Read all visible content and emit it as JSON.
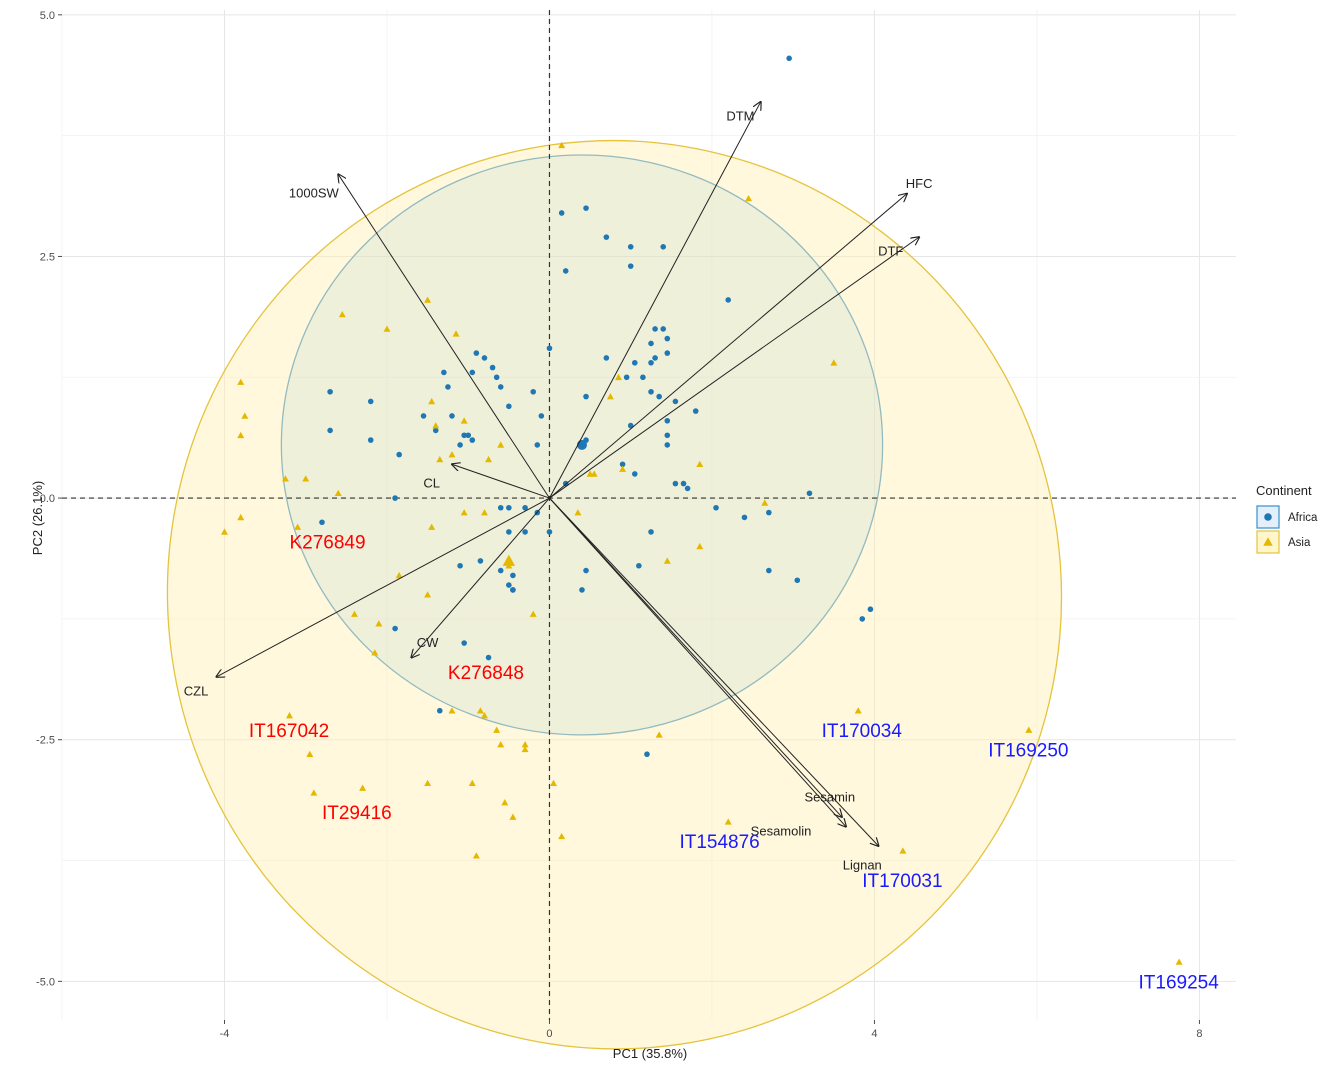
{
  "chart_data": {
    "type": "scatter",
    "subtype": "pca-biplot",
    "xlabel": "PC1 (35.8%)",
    "ylabel": "PC2 (26.1%)",
    "xlim": [
      -6.0,
      8.45
    ],
    "ylim": [
      -5.4,
      5.05
    ],
    "xticks": [
      -4,
      0,
      4,
      8
    ],
    "yticks": [
      -5.0,
      -2.5,
      0.0,
      2.5,
      5.0
    ],
    "xtick_labels": [
      "-4",
      "0",
      "4",
      "8"
    ],
    "ytick_labels": [
      "-5.0",
      "-2.5",
      "0.0",
      "2.5",
      "5.0"
    ],
    "grid": true,
    "reference_lines": {
      "x": 0,
      "y": 0,
      "style": "dashed"
    },
    "legend": {
      "title": "Continent",
      "position": "right",
      "entries": [
        {
          "name": "Africa",
          "marker": "circle",
          "color": "#1f78b4"
        },
        {
          "name": "Asia",
          "marker": "triangle",
          "color": "#e5b800"
        }
      ]
    },
    "ellipses": [
      {
        "group": "Africa",
        "center": [
          0.4,
          0.55
        ],
        "rx": 3.7,
        "ry": 3.0,
        "rotation_deg": 0,
        "fill": "#4aa3df",
        "stroke": "#3a8fc8",
        "fill_opacity": 0.16
      },
      {
        "group": "Asia",
        "center": [
          0.8,
          -1.0
        ],
        "rx": 5.5,
        "ry": 4.7,
        "rotation_deg": -8,
        "fill": "#fff0b3",
        "stroke": "#e5c33c",
        "fill_opacity": 0.45
      }
    ],
    "loadings": [
      {
        "name": "DTM",
        "x": 2.6,
        "y": 4.1,
        "label_x": 2.35,
        "label_y": 3.95
      },
      {
        "name": "HFC",
        "x": 4.4,
        "y": 3.15,
        "label_x": 4.55,
        "label_y": 3.25
      },
      {
        "name": "DTF",
        "x": 4.55,
        "y": 2.7,
        "label_x": 4.2,
        "label_y": 2.55
      },
      {
        "name": "1000SW",
        "x": -2.6,
        "y": 3.35,
        "label_x": -2.9,
        "label_y": 3.15
      },
      {
        "name": "CL",
        "x": -1.2,
        "y": 0.35,
        "label_x": -1.45,
        "label_y": 0.15
      },
      {
        "name": "CW",
        "x": -1.7,
        "y": -1.65,
        "label_x": -1.5,
        "label_y": -1.5
      },
      {
        "name": "CZL",
        "x": -4.1,
        "y": -1.85,
        "label_x": -4.35,
        "label_y": -2.0
      },
      {
        "name": "Sesamin",
        "x": 3.6,
        "y": -3.3,
        "label_x": 3.45,
        "label_y": -3.1
      },
      {
        "name": "Sesamolin",
        "x": 3.65,
        "y": -3.4,
        "label_x": 2.85,
        "label_y": -3.45
      },
      {
        "name": "Lignan",
        "x": 4.05,
        "y": -3.6,
        "label_x": 3.85,
        "label_y": -3.8
      }
    ],
    "series": [
      {
        "name": "Africa",
        "marker": "circle",
        "points": [
          [
            2.95,
            4.55
          ],
          [
            0.15,
            2.95
          ],
          [
            0.45,
            3.0
          ],
          [
            0.2,
            2.35
          ],
          [
            0.7,
            2.7
          ],
          [
            1.0,
            2.6
          ],
          [
            1.4,
            2.6
          ],
          [
            1.0,
            2.4
          ],
          [
            2.2,
            2.05
          ],
          [
            1.3,
            1.75
          ],
          [
            1.4,
            1.75
          ],
          [
            1.45,
            1.65
          ],
          [
            1.25,
            1.6
          ],
          [
            0.0,
            1.55
          ],
          [
            1.45,
            1.5
          ],
          [
            0.7,
            1.45
          ],
          [
            1.05,
            1.4
          ],
          [
            1.25,
            1.4
          ],
          [
            1.3,
            1.45
          ],
          [
            -0.9,
            1.5
          ],
          [
            -0.8,
            1.45
          ],
          [
            -0.7,
            1.35
          ],
          [
            -0.95,
            1.3
          ],
          [
            -0.65,
            1.25
          ],
          [
            -1.3,
            1.3
          ],
          [
            -1.25,
            1.15
          ],
          [
            -0.6,
            1.15
          ],
          [
            -2.7,
            1.1
          ],
          [
            -2.2,
            1.0
          ],
          [
            -0.2,
            1.1
          ],
          [
            0.45,
            1.05
          ],
          [
            0.95,
            1.25
          ],
          [
            1.15,
            1.25
          ],
          [
            1.25,
            1.1
          ],
          [
            1.35,
            1.05
          ],
          [
            1.55,
            1.0
          ],
          [
            -1.55,
            0.85
          ],
          [
            -1.0,
            0.65
          ],
          [
            -1.2,
            0.85
          ],
          [
            -0.5,
            0.95
          ],
          [
            -0.1,
            0.85
          ],
          [
            1.0,
            0.75
          ],
          [
            1.45,
            0.8
          ],
          [
            1.8,
            0.9
          ],
          [
            1.45,
            0.65
          ],
          [
            -2.7,
            0.7
          ],
          [
            -2.2,
            0.6
          ],
          [
            -1.4,
            0.7
          ],
          [
            -1.05,
            0.65
          ],
          [
            -0.95,
            0.6
          ],
          [
            -1.1,
            0.55
          ],
          [
            0.4,
            0.55
          ],
          [
            0.45,
            0.6
          ],
          [
            1.45,
            0.55
          ],
          [
            -1.85,
            0.45
          ],
          [
            -0.15,
            0.55
          ],
          [
            0.2,
            0.15
          ],
          [
            0.9,
            0.35
          ],
          [
            1.55,
            0.15
          ],
          [
            1.65,
            0.15
          ],
          [
            1.7,
            0.1
          ],
          [
            1.05,
            0.25
          ],
          [
            -1.9,
            0.0
          ],
          [
            -2.8,
            -0.25
          ],
          [
            -0.6,
            -0.1
          ],
          [
            -0.5,
            -0.1
          ],
          [
            -0.3,
            -0.1
          ],
          [
            -0.15,
            -0.15
          ],
          [
            2.05,
            -0.1
          ],
          [
            2.7,
            -0.15
          ],
          [
            3.2,
            0.05
          ],
          [
            -0.5,
            -0.35
          ],
          [
            -0.3,
            -0.35
          ],
          [
            0.0,
            -0.35
          ],
          [
            1.25,
            -0.35
          ],
          [
            2.4,
            -0.2
          ],
          [
            -0.85,
            -0.65
          ],
          [
            -1.1,
            -0.7
          ],
          [
            -0.6,
            -0.75
          ],
          [
            -0.45,
            -0.8
          ],
          [
            -0.45,
            -0.95
          ],
          [
            -0.5,
            -0.9
          ],
          [
            0.45,
            -0.75
          ],
          [
            1.1,
            -0.7
          ],
          [
            2.7,
            -0.75
          ],
          [
            3.05,
            -0.85
          ],
          [
            0.4,
            -0.95
          ],
          [
            -0.45,
            -0.95
          ],
          [
            -1.9,
            -1.35
          ],
          [
            -1.05,
            -1.5
          ],
          [
            -0.75,
            -1.65
          ],
          [
            3.95,
            -1.15
          ],
          [
            3.85,
            -1.25
          ],
          [
            -1.35,
            -2.2
          ],
          [
            1.2,
            -2.65
          ]
        ]
      },
      {
        "name": "Asia",
        "marker": "triangle",
        "points": [
          [
            0.15,
            3.65
          ],
          [
            2.45,
            3.1
          ],
          [
            -1.5,
            2.05
          ],
          [
            -2.55,
            1.9
          ],
          [
            -2.0,
            1.75
          ],
          [
            -1.15,
            1.7
          ],
          [
            3.5,
            1.4
          ],
          [
            -3.8,
            1.2
          ],
          [
            -3.75,
            0.85
          ],
          [
            -3.8,
            0.65
          ],
          [
            -1.45,
            1.0
          ],
          [
            0.85,
            1.25
          ],
          [
            0.75,
            1.05
          ],
          [
            -1.4,
            0.75
          ],
          [
            -1.05,
            0.8
          ],
          [
            -0.6,
            0.55
          ],
          [
            -0.75,
            0.4
          ],
          [
            -1.2,
            0.45
          ],
          [
            -1.35,
            0.4
          ],
          [
            0.5,
            0.25
          ],
          [
            0.55,
            0.25
          ],
          [
            0.9,
            0.3
          ],
          [
            1.85,
            0.35
          ],
          [
            -3.25,
            0.2
          ],
          [
            -3.0,
            0.2
          ],
          [
            -2.6,
            0.05
          ],
          [
            -3.8,
            -0.2
          ],
          [
            -4.0,
            -0.35
          ],
          [
            -3.1,
            -0.3
          ],
          [
            -1.45,
            -0.3
          ],
          [
            -1.05,
            -0.15
          ],
          [
            -0.8,
            -0.15
          ],
          [
            0.35,
            -0.15
          ],
          [
            2.65,
            -0.05
          ],
          [
            1.85,
            -0.5
          ],
          [
            1.45,
            -0.65
          ],
          [
            -0.5,
            -0.7
          ],
          [
            -1.85,
            -0.8
          ],
          [
            -1.5,
            -1.0
          ],
          [
            -2.4,
            -1.2
          ],
          [
            -2.1,
            -1.3
          ],
          [
            -0.2,
            -1.2
          ],
          [
            -2.15,
            -1.6
          ],
          [
            -3.2,
            -2.25
          ],
          [
            -1.2,
            -2.2
          ],
          [
            -0.85,
            -2.2
          ],
          [
            -0.8,
            -2.25
          ],
          [
            -0.65,
            -2.4
          ],
          [
            -0.6,
            -2.55
          ],
          [
            -0.3,
            -2.55
          ],
          [
            -0.3,
            -2.6
          ],
          [
            3.8,
            -2.2
          ],
          [
            1.35,
            -2.45
          ],
          [
            5.9,
            -2.4
          ],
          [
            -2.95,
            -2.65
          ],
          [
            -2.3,
            -3.0
          ],
          [
            -2.9,
            -3.05
          ],
          [
            -1.5,
            -2.95
          ],
          [
            -0.95,
            -2.95
          ],
          [
            -0.55,
            -3.15
          ],
          [
            -0.45,
            -3.3
          ],
          [
            0.05,
            -2.95
          ],
          [
            2.2,
            -3.35
          ],
          [
            0.15,
            -3.5
          ],
          [
            -0.9,
            -3.7
          ],
          [
            4.35,
            -3.65
          ],
          [
            7.75,
            -4.8
          ]
        ]
      }
    ],
    "highlighted_points": [
      {
        "x": 0.4,
        "y": 0.55,
        "group": "Africa"
      },
      {
        "x": -0.5,
        "y": -0.65,
        "group": "Asia"
      }
    ],
    "annotations": [
      {
        "text": "K276849",
        "x": -3.2,
        "y": -0.45,
        "color": "#ff0000",
        "anchor": "start"
      },
      {
        "text": "K276848",
        "x": -1.25,
        "y": -1.8,
        "color": "#ff0000",
        "anchor": "start"
      },
      {
        "text": "IT167042",
        "x": -3.7,
        "y": -2.4,
        "color": "#ff0000",
        "anchor": "start"
      },
      {
        "text": "IT29416",
        "x": -2.8,
        "y": -3.25,
        "color": "#ff0000",
        "anchor": "start"
      },
      {
        "text": "IT170034",
        "x": 3.35,
        "y": -2.4,
        "color": "#1a1aff",
        "anchor": "start"
      },
      {
        "text": "IT169250",
        "x": 5.4,
        "y": -2.6,
        "color": "#1a1aff",
        "anchor": "start"
      },
      {
        "text": "IT154876",
        "x": 1.6,
        "y": -3.55,
        "color": "#1a1aff",
        "anchor": "start"
      },
      {
        "text": "IT170031",
        "x": 3.85,
        "y": -3.95,
        "color": "#1a1aff",
        "anchor": "start"
      },
      {
        "text": "IT169254",
        "x": 7.25,
        "y": -5.0,
        "color": "#1a1aff",
        "anchor": "start"
      }
    ]
  }
}
